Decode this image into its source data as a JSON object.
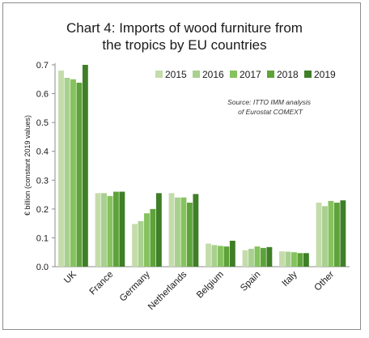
{
  "chart_data": {
    "type": "bar",
    "title": "Chart 4: Imports of wood furniture from the tropics by EU countries",
    "title_lines": [
      "Chart 4: Imports of wood furniture from",
      "the tropics by EU countries"
    ],
    "ylabel": "€ billion (constant 2019 values)",
    "xlabel": "",
    "ylim": [
      0,
      0.7
    ],
    "yticks": [
      "0.0",
      "0.1",
      "0.2",
      "0.3",
      "0.4",
      "0.5",
      "0.6",
      "0.7"
    ],
    "grid": false,
    "legend_position": "top-right",
    "source_lines": [
      "Source: ITTO IMM analysis",
      "of Eurostat COMEXT"
    ],
    "categories": [
      "UK",
      "France",
      "Germany",
      "Netherlands",
      "Belgium",
      "Spain",
      "Italy",
      "Other"
    ],
    "series": [
      {
        "name": "2015",
        "color": "#c4dcaa",
        "values": [
          0.68,
          0.255,
          0.148,
          0.255,
          0.08,
          0.057,
          0.053,
          0.222
        ]
      },
      {
        "name": "2016",
        "color": "#a8d08e",
        "values": [
          0.655,
          0.255,
          0.158,
          0.24,
          0.075,
          0.062,
          0.052,
          0.21
        ]
      },
      {
        "name": "2017",
        "color": "#86c25e",
        "values": [
          0.65,
          0.245,
          0.185,
          0.24,
          0.072,
          0.07,
          0.05,
          0.228
        ]
      },
      {
        "name": "2018",
        "color": "#5ea33a",
        "values": [
          0.638,
          0.26,
          0.2,
          0.222,
          0.07,
          0.065,
          0.047,
          0.222
        ]
      },
      {
        "name": "2019",
        "color": "#3f7f27",
        "values": [
          0.7,
          0.26,
          0.255,
          0.252,
          0.09,
          0.068,
          0.047,
          0.23
        ]
      }
    ]
  }
}
